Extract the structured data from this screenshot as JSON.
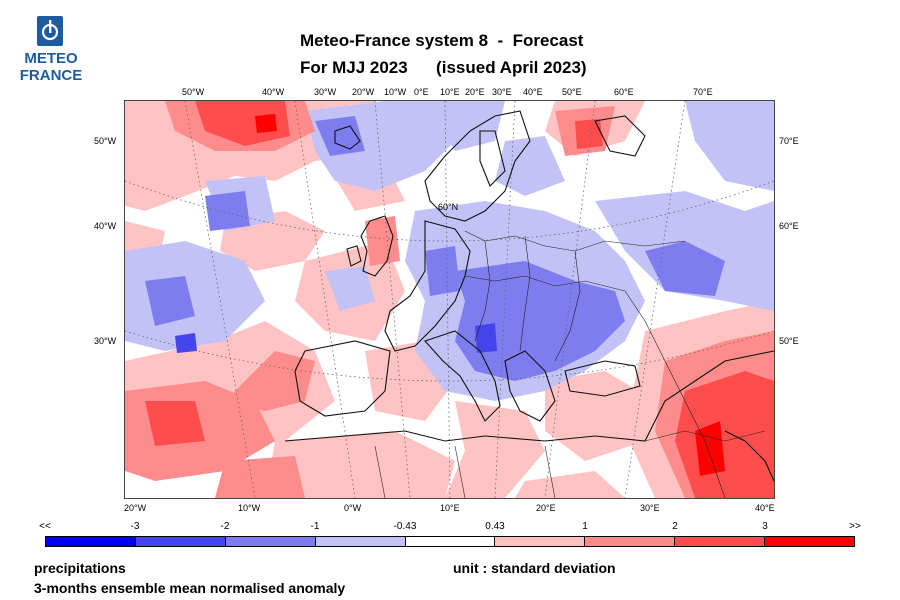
{
  "logo": {
    "line1": "METEO",
    "line2": "FRANCE",
    "color": "#1b5c9e"
  },
  "title": {
    "line1": "Meteo-France system 8  -  Forecast",
    "line2": "For MJJ 2023      (issued April 2023)"
  },
  "top_lon_labels": [
    "50°W",
    "40°W",
    "30°W",
    "20°W",
    "10°W",
    "0°E",
    "10°E",
    "20°E",
    "30°E",
    "40°E",
    "50°E",
    "60°E",
    "70°E"
  ],
  "bottom_lon_labels": [
    "20°W",
    "10°W",
    "0°W",
    "10°E",
    "20°E",
    "30°E",
    "40°E"
  ],
  "left_lat_labels": [
    "50°W",
    "40°W",
    "30°W"
  ],
  "right_lat_labels": [
    "70°E",
    "60°E",
    "50°E"
  ],
  "inner_label": "60°N",
  "colorbar": {
    "labels": [
      "<<",
      "-3",
      "-2",
      "-1",
      "-0.43",
      "0.43",
      "1",
      "2",
      "3",
      ">>"
    ],
    "colors": [
      "#0000ee",
      "#4545ee",
      "#7d7df0",
      "#c2c2f7",
      "#ffffff",
      "#ffc3c3",
      "#ff8c8c",
      "#ff4d4d",
      "#ff0000"
    ]
  },
  "footer": {
    "variable": "precipitations",
    "description": "3-months ensemble mean normalised anomaly",
    "unit": "unit : standard deviation"
  }
}
